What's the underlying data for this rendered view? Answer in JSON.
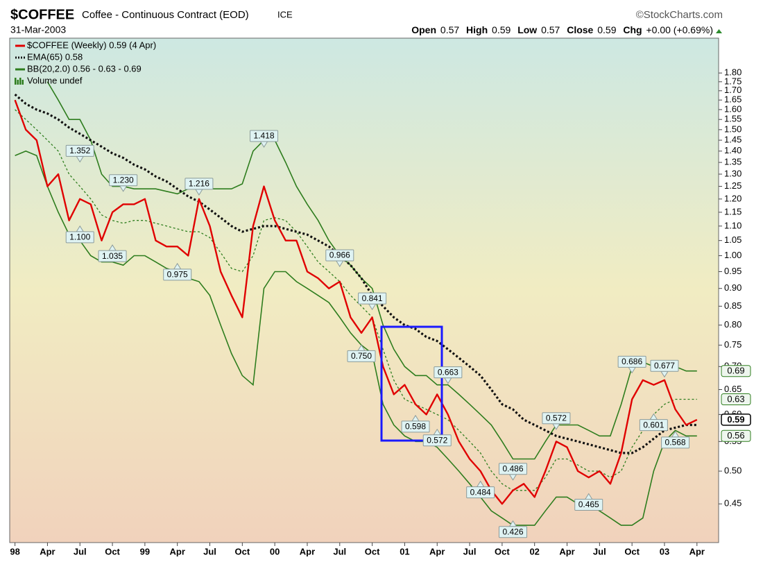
{
  "chart_data": {
    "type": "line",
    "title": "$COFFEE",
    "subtitle": "Coffee - Continuous Contract (EOD)",
    "exchange": "ICE",
    "source": "©StockCharts.com",
    "date": "31-Mar-2003",
    "quote": [
      {
        "label": "Open",
        "value": 0.57
      },
      {
        "label": "High",
        "value": 0.59
      },
      {
        "label": "Low",
        "value": 0.57
      },
      {
        "label": "Close",
        "value": 0.59
      },
      {
        "label": "Chg",
        "value": "+0.00 (+0.69%)"
      }
    ],
    "log_scale": true,
    "xlim": [
      "1997-12",
      "2003-06"
    ],
    "ylim": [
      0.4,
      2.0
    ],
    "xticks": [
      {
        "value": "1998-01",
        "label": "98"
      },
      {
        "value": "1998-04",
        "label": "Apr"
      },
      {
        "value": "1998-07",
        "label": "Jul"
      },
      {
        "value": "1998-10",
        "label": "Oct"
      },
      {
        "value": "1999-01",
        "label": "99"
      },
      {
        "value": "1999-04",
        "label": "Apr"
      },
      {
        "value": "1999-07",
        "label": "Jul"
      },
      {
        "value": "1999-10",
        "label": "Oct"
      },
      {
        "value": "2000-01",
        "label": "00"
      },
      {
        "value": "2000-04",
        "label": "Apr"
      },
      {
        "value": "2000-07",
        "label": "Jul"
      },
      {
        "value": "2000-10",
        "label": "Oct"
      },
      {
        "value": "2001-01",
        "label": "01"
      },
      {
        "value": "2001-04",
        "label": "Apr"
      },
      {
        "value": "2001-07",
        "label": "Jul"
      },
      {
        "value": "2001-10",
        "label": "Oct"
      },
      {
        "value": "2002-01",
        "label": "02"
      },
      {
        "value": "2002-04",
        "label": "Apr"
      },
      {
        "value": "2002-07",
        "label": "Jul"
      },
      {
        "value": "2002-10",
        "label": "Oct"
      },
      {
        "value": "2003-01",
        "label": "03"
      },
      {
        "value": "2003-04",
        "label": "Apr"
      }
    ],
    "yticks": [
      {
        "value": 1.8,
        "label": "1.80"
      },
      1.75,
      {
        "value": 1.7,
        "label": "1.70"
      },
      1.65,
      {
        "value": 1.6,
        "label": "1.60"
      },
      1.55,
      {
        "value": 1.5,
        "label": "1.50"
      },
      1.45,
      {
        "value": 1.4,
        "label": "1.40"
      },
      1.35,
      {
        "value": 1.3,
        "label": "1.30"
      },
      1.25,
      {
        "value": 1.2,
        "label": "1.20"
      },
      1.15,
      {
        "value": 1.1,
        "label": "1.10"
      },
      1.05,
      {
        "value": 1,
        "label": "1.00"
      },
      0.95,
      {
        "value": 0.9,
        "label": "0.90"
      },
      0.85,
      {
        "value": 0.8,
        "label": "0.80"
      },
      0.75,
      {
        "value": 0.7,
        "label": "0.70"
      },
      0.65,
      {
        "value": 0.6,
        "label": "0.60"
      },
      0.55,
      {
        "value": 0.5,
        "label": "0.50"
      },
      0.45
    ],
    "x": [
      "1998-01",
      "1998-02",
      "1998-03",
      "1998-04",
      "1998-05",
      "1998-06",
      "1998-07",
      "1998-08",
      "1998-09",
      "1998-10",
      "1998-11",
      "1998-12",
      "1999-01",
      "1999-02",
      "1999-03",
      "1999-04",
      "1999-05",
      "1999-06",
      "1999-07",
      "1999-08",
      "1999-09",
      "1999-10",
      "1999-11",
      "1999-12",
      "2000-01",
      "2000-02",
      "2000-03",
      "2000-04",
      "2000-05",
      "2000-06",
      "2000-07",
      "2000-08",
      "2000-09",
      "2000-10",
      "2000-11",
      "2000-12",
      "2001-01",
      "2001-02",
      "2001-03",
      "2001-04",
      "2001-05",
      "2001-06",
      "2001-07",
      "2001-08",
      "2001-09",
      "2001-10",
      "2001-11",
      "2001-12",
      "2002-01",
      "2002-02",
      "2002-03",
      "2002-04",
      "2002-05",
      "2002-06",
      "2002-07",
      "2002-08",
      "2002-09",
      "2002-10",
      "2002-11",
      "2002-12",
      "2003-01",
      "2003-02",
      "2003-03",
      "2003-04"
    ],
    "series": [
      {
        "name": "$COFFEE (Weekly) 0.59 (4 Apr)",
        "color": "#e00000",
        "style": "solid",
        "values": [
          1.65,
          1.5,
          1.45,
          1.25,
          1.3,
          1.12,
          1.2,
          1.18,
          1.05,
          1.15,
          1.18,
          1.18,
          1.2,
          1.05,
          1.03,
          1.03,
          1.0,
          1.2,
          1.1,
          0.95,
          0.88,
          0.82,
          1.1,
          1.25,
          1.12,
          1.05,
          1.05,
          0.95,
          0.93,
          0.9,
          0.92,
          0.82,
          0.78,
          0.82,
          0.7,
          0.64,
          0.66,
          0.62,
          0.6,
          0.64,
          0.6,
          0.55,
          0.52,
          0.5,
          0.47,
          0.45,
          0.47,
          0.48,
          0.46,
          0.5,
          0.55,
          0.54,
          0.5,
          0.49,
          0.5,
          0.48,
          0.53,
          0.63,
          0.67,
          0.66,
          0.67,
          0.61,
          0.58,
          0.59
        ]
      },
      {
        "name": "EMA(65) 0.58",
        "color": "#111111",
        "style": "dotted",
        "values": [
          1.68,
          1.63,
          1.6,
          1.58,
          1.55,
          1.51,
          1.48,
          1.45,
          1.42,
          1.39,
          1.37,
          1.34,
          1.32,
          1.29,
          1.27,
          1.24,
          1.21,
          1.19,
          1.16,
          1.13,
          1.1,
          1.08,
          1.09,
          1.1,
          1.1,
          1.09,
          1.08,
          1.07,
          1.05,
          1.03,
          1.0,
          0.97,
          0.93,
          0.88,
          0.85,
          0.82,
          0.8,
          0.79,
          0.77,
          0.76,
          0.74,
          0.72,
          0.7,
          0.68,
          0.65,
          0.62,
          0.61,
          0.59,
          0.58,
          0.57,
          0.56,
          0.555,
          0.55,
          0.545,
          0.54,
          0.535,
          0.53,
          0.53,
          0.54,
          0.555,
          0.57,
          0.575,
          0.58,
          0.58
        ]
      }
    ],
    "bollinger": {
      "name": "BB(20,2.0) 0.56 - 0.63 - 0.69",
      "color": "#2e7d1e",
      "upper": [
        null,
        null,
        null,
        1.75,
        1.65,
        1.55,
        1.55,
        1.45,
        1.3,
        1.25,
        1.25,
        1.24,
        1.24,
        1.24,
        1.23,
        1.22,
        1.24,
        1.25,
        1.24,
        1.24,
        1.24,
        1.26,
        1.4,
        1.45,
        1.45,
        1.35,
        1.25,
        1.18,
        1.12,
        1.05,
        1.0,
        0.97,
        0.93,
        0.9,
        0.8,
        0.74,
        0.7,
        0.68,
        0.68,
        0.66,
        0.66,
        0.64,
        0.62,
        0.6,
        0.58,
        0.55,
        0.52,
        0.52,
        0.52,
        0.55,
        0.58,
        0.58,
        0.58,
        0.57,
        0.56,
        0.56,
        0.62,
        0.7,
        0.71,
        0.7,
        0.71,
        0.7,
        0.69,
        0.69
      ],
      "middle": [
        1.6,
        1.55,
        1.5,
        1.45,
        1.4,
        1.3,
        1.25,
        1.2,
        1.14,
        1.12,
        1.11,
        1.12,
        1.12,
        1.11,
        1.1,
        1.09,
        1.08,
        1.08,
        1.06,
        1.01,
        0.96,
        0.95,
        1.0,
        1.12,
        1.13,
        1.12,
        1.08,
        1.03,
        0.98,
        0.95,
        0.92,
        0.88,
        0.85,
        0.82,
        0.74,
        0.67,
        0.63,
        0.62,
        0.61,
        0.6,
        0.59,
        0.57,
        0.55,
        0.53,
        0.5,
        0.48,
        0.47,
        0.47,
        0.47,
        0.49,
        0.52,
        0.52,
        0.51,
        0.5,
        0.5,
        0.49,
        0.5,
        0.54,
        0.57,
        0.6,
        0.62,
        0.63,
        0.63,
        0.63
      ],
      "lower": [
        1.38,
        1.4,
        1.38,
        1.25,
        1.15,
        1.07,
        1.05,
        1.0,
        0.98,
        0.98,
        0.97,
        1.0,
        1.0,
        0.98,
        0.96,
        0.95,
        0.93,
        0.92,
        0.88,
        0.8,
        0.73,
        0.68,
        0.66,
        0.9,
        0.95,
        0.95,
        0.92,
        0.9,
        0.88,
        0.86,
        0.82,
        0.78,
        0.75,
        0.73,
        0.62,
        0.58,
        0.56,
        0.55,
        0.55,
        0.54,
        0.52,
        0.5,
        0.48,
        0.46,
        0.44,
        0.43,
        0.42,
        0.42,
        0.42,
        0.44,
        0.46,
        0.46,
        0.45,
        0.45,
        0.44,
        0.43,
        0.42,
        0.42,
        0.43,
        0.5,
        0.55,
        0.57,
        0.56,
        0.56
      ]
    },
    "volume": {
      "name": "Volume undef",
      "color": "#2e7d1e"
    },
    "last_values": [
      0.69,
      0.63,
      0.59,
      0.56
    ],
    "annotations": {
      "x": [
        "1998-07",
        "1998-07",
        "1998-11",
        "1998-10",
        "1999-04",
        "1999-06",
        "1999-12",
        "2000-07",
        "2000-10",
        "2000-09",
        "2001-05",
        "2001-02",
        "2001-04",
        "2001-08",
        "2001-11",
        "2001-11",
        "2002-03",
        "2002-06",
        "2002-10",
        "2003-01",
        "2002-12",
        "2003-02"
      ],
      "values": [
        1.352,
        1.1,
        1.23,
        1.035,
        0.975,
        1.216,
        1.418,
        0.966,
        0.841,
        0.75,
        0.663,
        0.598,
        0.572,
        0.484,
        0.486,
        0.426,
        0.572,
        0.465,
        0.686,
        0.677,
        0.601,
        0.568
      ],
      "value_labels": [
        "1.352",
        "1.100",
        "1.230",
        "1.035",
        "0.975",
        "1.216",
        "1.418",
        "0.966",
        "0.841",
        "0.750",
        "0.663",
        "0.598",
        "0.572",
        "0.484",
        "0.486",
        "0.426",
        "0.572",
        "0.465",
        "0.686",
        "0.677",
        "0.601",
        "0.568"
      ],
      "positions": [
        "above",
        "below",
        "above",
        "below",
        "below",
        "above",
        "above",
        "above",
        "above",
        "below",
        "above",
        "below",
        "below",
        "below",
        "above",
        "below",
        "above",
        "below",
        "above",
        "above",
        "below",
        "below"
      ]
    }
  }
}
